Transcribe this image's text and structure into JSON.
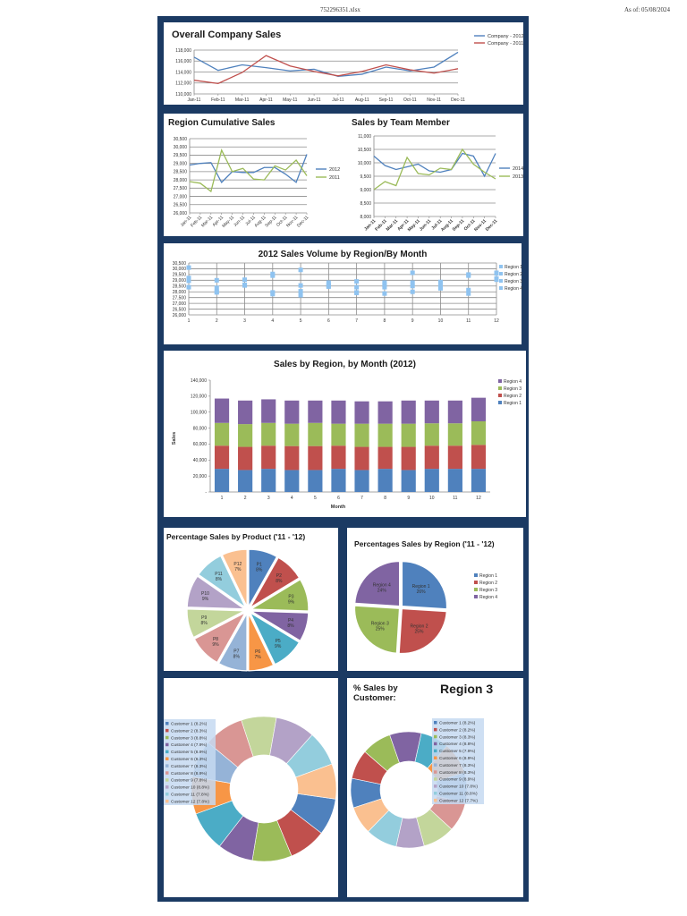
{
  "header": {
    "filename": "752296351.xlsx",
    "as_of": "As of: 05/08/2024"
  },
  "colors": {
    "frame": "#1b3a63",
    "series": [
      "#4F81BD",
      "#C0504D",
      "#9BBB59",
      "#8064A2",
      "#4BACC6",
      "#F79646",
      "#95B3D7",
      "#D99694",
      "#C3D69B",
      "#B3A2C7",
      "#93CDDD",
      "#FAC090"
    ],
    "scatter_marker": "#8fc3f0"
  },
  "chart_data": [
    {
      "type": "line",
      "title": "Overall Company Sales",
      "categories": [
        "Jan-11",
        "Feb-11",
        "Mar-11",
        "Apr-11",
        "May-11",
        "Jun-11",
        "Jul-11",
        "Aug-11",
        "Sep-11",
        "Oct-11",
        "Nov-11",
        "Dec-11"
      ],
      "ylim": [
        110000,
        118000
      ],
      "yticks": [
        "110,000",
        "112,000",
        "114,000",
        "116,000",
        "118,000"
      ],
      "legend": "top-right",
      "grid": true,
      "series": [
        {
          "name": "Company - 2012",
          "color": "#4F81BD",
          "values": [
            116700,
            114300,
            115300,
            114800,
            114200,
            114500,
            113200,
            113600,
            114900,
            114200,
            114900,
            117600
          ]
        },
        {
          "name": "Company - 2011",
          "color": "#C0504D",
          "values": [
            112500,
            111900,
            113900,
            117000,
            115100,
            114100,
            113300,
            114100,
            115300,
            114400,
            113800,
            114600
          ]
        }
      ]
    },
    {
      "type": "line",
      "title": "Region Cumulative Sales",
      "categories": [
        "Jan-11",
        "Feb-11",
        "Mar-11",
        "Apr-11",
        "May-11",
        "Jun-11",
        "Jul-11",
        "Aug-11",
        "Sep-11",
        "Oct-11",
        "Nov-11",
        "Dec-11"
      ],
      "ylim": [
        26000,
        30500
      ],
      "yticks": [
        "26,000",
        "26,500",
        "27,000",
        "27,500",
        "28,000",
        "28,500",
        "29,000",
        "29,500",
        "30,000",
        "30,500"
      ],
      "legend": "right",
      "grid": true,
      "series": [
        {
          "name": "2012",
          "color": "#4F81BD",
          "values": [
            28900,
            29000,
            29050,
            27850,
            28500,
            28450,
            28450,
            28750,
            28750,
            28350,
            27850,
            29550
          ]
        },
        {
          "name": "2011",
          "color": "#9BBB59",
          "values": [
            27900,
            27800,
            27300,
            29800,
            28500,
            28700,
            28050,
            28000,
            28850,
            28600,
            29200,
            28250
          ]
        }
      ]
    },
    {
      "type": "line",
      "title": "Sales by Team Member",
      "categories": [
        "Jan-11",
        "Feb-11",
        "Mar-11",
        "Apr-11",
        "May-11",
        "Jun-11",
        "Jul-11",
        "Aug-11",
        "Sep-11",
        "Oct-11",
        "Nov-11",
        "Dec-11"
      ],
      "ylim": [
        8000,
        11000
      ],
      "yticks": [
        "8,000",
        "8,500",
        "9,000",
        "9,500",
        "10,000",
        "10,500",
        "11,000"
      ],
      "legend": "right",
      "grid": true,
      "series": [
        {
          "name": "2014",
          "color": "#4F81BD",
          "values": [
            10250,
            9900,
            9750,
            9850,
            9950,
            9700,
            9650,
            9750,
            10350,
            10250,
            9500,
            10350
          ]
        },
        {
          "name": "2013",
          "color": "#9BBB59",
          "values": [
            9000,
            9300,
            9150,
            10200,
            9600,
            9550,
            9800,
            9750,
            10500,
            9950,
            9650,
            9400
          ]
        }
      ]
    },
    {
      "type": "scatter",
      "title": "2012 Sales Volume by Region/By Month",
      "x": [
        1,
        2,
        3,
        4,
        5,
        6,
        7,
        8,
        9,
        10,
        11,
        12
      ],
      "xlim": [
        1,
        12
      ],
      "ylim": [
        26000,
        30500
      ],
      "yticks": [
        "26,000",
        "26,500",
        "27,000",
        "27,500",
        "28,000",
        "28,500",
        "29,000",
        "29,500",
        "30,000",
        "30,500"
      ],
      "xticks": [
        "1",
        "2",
        "3",
        "4",
        "5",
        "6",
        "7",
        "8",
        "9",
        "10",
        "11",
        "12"
      ],
      "legend": "right",
      "grid": true,
      "series": [
        {
          "name": "Region 1",
          "values": [
            30100,
            29000,
            29050,
            29550,
            29900,
            28800,
            28900,
            28800,
            29650,
            28850,
            29500,
            29650
          ]
        },
        {
          "name": "Region 2",
          "values": [
            29200,
            28350,
            28600,
            29400,
            28550,
            28600,
            28400,
            28600,
            28800,
            28700,
            29400,
            29600
          ]
        },
        {
          "name": "Region 3",
          "values": [
            28950,
            27950,
            28550,
            27950,
            28050,
            28450,
            27950,
            28400,
            28500,
            28300,
            28150,
            29150
          ]
        },
        {
          "name": "Region 4",
          "values": [
            28400,
            28000,
            28600,
            27800,
            27700,
            28500,
            27900,
            27850,
            28000,
            28350,
            27850,
            29050
          ]
        }
      ]
    },
    {
      "type": "bar",
      "stacked": true,
      "title": "Sales by Region, by Month (2012)",
      "categories": [
        "1",
        "2",
        "3",
        "4",
        "5",
        "6",
        "7",
        "8",
        "9",
        "10",
        "11",
        "12"
      ],
      "xlabel": "Month",
      "ylabel": "Sales",
      "ylim": [
        0,
        140000
      ],
      "yticks": [
        "-",
        "20,000",
        "40,000",
        "60,000",
        "80,000",
        "100,000",
        "120,000",
        "140,000"
      ],
      "legend": "right",
      "grid": false,
      "series": [
        {
          "name": "Region 1",
          "color": "#4F81BD",
          "values": [
            29000,
            27500,
            29000,
            27500,
            27500,
            29000,
            27500,
            29000,
            27500,
            29000,
            29000,
            29000
          ]
        },
        {
          "name": "Region 2",
          "color": "#C0504D",
          "values": [
            29000,
            29000,
            29000,
            30000,
            30000,
            29000,
            29000,
            27500,
            29000,
            29000,
            29000,
            30000
          ]
        },
        {
          "name": "Region 3",
          "color": "#9BBB59",
          "values": [
            28500,
            28500,
            28500,
            28000,
            29000,
            27500,
            29000,
            29000,
            29000,
            28000,
            28000,
            29500
          ]
        },
        {
          "name": "Region 4",
          "color": "#8064A2",
          "values": [
            30500,
            29500,
            29500,
            29000,
            28000,
            29000,
            28000,
            28000,
            29000,
            28500,
            28500,
            29500
          ]
        }
      ]
    },
    {
      "type": "pie",
      "title": "Percentage Sales by Product ('11 - '12)",
      "labels": [
        "P1",
        "P2",
        "P3",
        "P4",
        "P5",
        "P6",
        "P7",
        "P8",
        "P9",
        "P10",
        "P11",
        "P12"
      ],
      "values": [
        8,
        8,
        9,
        8,
        9,
        7,
        8,
        9,
        8,
        9,
        8,
        7
      ],
      "display": [
        "8%",
        "8%",
        "9%",
        "8%",
        "9%",
        "7%",
        "8%",
        "9%",
        "8%",
        "9%",
        "8%",
        "7%"
      ],
      "exploded": true
    },
    {
      "type": "pie",
      "title": "Percentages Sales by Region ('11 - '12)",
      "labels": [
        "Region 1",
        "Region 2",
        "Region 3",
        "Region 4"
      ],
      "values": [
        26,
        25,
        25,
        24
      ],
      "display": [
        "26%",
        "25%",
        "25%",
        "24%"
      ],
      "exploded": true,
      "legend": "right"
    },
    {
      "type": "pie",
      "donut": true,
      "title": "",
      "labels": [
        "Customer 1 (8.2%)",
        "Customer 2 (8.3%)",
        "Customer 3 (8.8%)",
        "Customer 4 (7.9%)",
        "Customer 5 (8.9%)",
        "Customer 6 (8.3%)",
        "Customer 7 (8.3%)",
        "Customer 8 (8.9%)",
        "Customer 9 (7.8%)",
        "Customer 10 (8.8%)",
        "Customer 11 (7.8%)",
        "Customer 12 (7.8%)"
      ],
      "values": [
        8.2,
        8.3,
        8.8,
        7.9,
        8.9,
        8.3,
        8.3,
        8.9,
        7.8,
        8.8,
        7.8,
        7.8
      ],
      "legend": "left"
    },
    {
      "type": "pie",
      "donut": true,
      "title": "% Sales by Customer:",
      "subtitle": "Region 3",
      "labels": [
        "Customer 1 (8.2%)",
        "Customer 2 (8.2%)",
        "Customer 3 (8.3%)",
        "Customer 4 (8.8%)",
        "Customer 5 (7.9%)",
        "Customer 6 (8.9%)",
        "Customer 7 (8.3%)",
        "Customer 8 (8.3%)",
        "Customer 9 (8.9%)",
        "Customer 10 (7.8%)",
        "Customer 11 (8.8%)",
        "Customer 12 (7.7%)"
      ],
      "values": [
        8.2,
        8.2,
        8.3,
        8.8,
        7.9,
        8.9,
        8.3,
        8.3,
        8.9,
        7.8,
        8.8,
        7.7
      ],
      "legend": "overlay-right"
    }
  ]
}
